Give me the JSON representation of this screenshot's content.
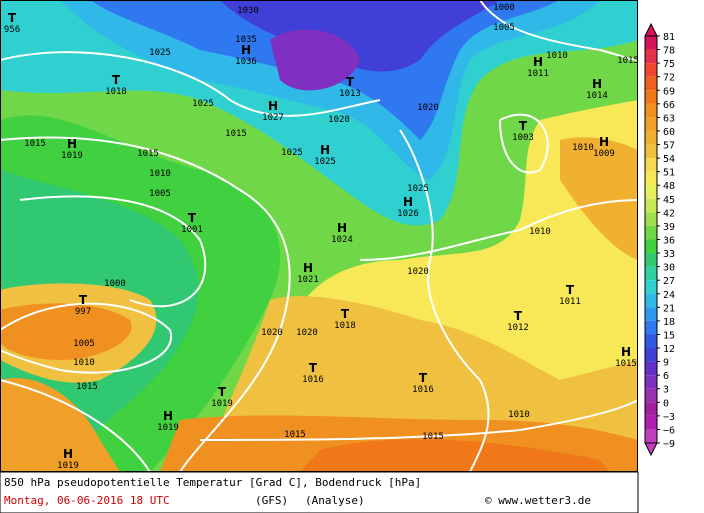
{
  "map": {
    "centers": [
      {
        "symbol": "T",
        "value": "956"
      },
      {
        "symbol": "H",
        "value": "1036"
      },
      {
        "symbol": "T",
        "value": "1018"
      },
      {
        "symbol": "H",
        "value": "1019"
      },
      {
        "symbol": "H",
        "value": "1027"
      },
      {
        "symbol": "T",
        "value": "1013"
      },
      {
        "symbol": "H",
        "value": "1011"
      },
      {
        "symbol": "H",
        "value": "1014"
      },
      {
        "symbol": "T",
        "value": "1003"
      },
      {
        "symbol": "H",
        "value": "1009"
      },
      {
        "symbol": "H",
        "value": "1025"
      },
      {
        "symbol": "T",
        "value": "1001"
      },
      {
        "symbol": "H",
        "value": "1026"
      },
      {
        "symbol": "H",
        "value": "1024"
      },
      {
        "symbol": "H",
        "value": "1021"
      },
      {
        "symbol": "T",
        "value": "997"
      },
      {
        "symbol": "T",
        "value": "1018"
      },
      {
        "symbol": "T",
        "value": "1011"
      },
      {
        "symbol": "T",
        "value": "1012"
      },
      {
        "symbol": "T",
        "value": "1016"
      },
      {
        "symbol": "T",
        "value": "1016"
      },
      {
        "symbol": "T",
        "value": "1019"
      },
      {
        "symbol": "H",
        "value": "1019"
      },
      {
        "symbol": "H",
        "value": "1015"
      },
      {
        "symbol": "H",
        "value": "1019"
      }
    ],
    "isobar_labels": [
      "1030",
      "1035",
      "1025",
      "1025",
      "1020",
      "1020",
      "1015",
      "1010",
      "1005",
      "1025",
      "1025",
      "1010",
      "1020",
      "1000",
      "1005",
      "1010",
      "1015",
      "1020",
      "1020",
      "1015",
      "1015",
      "1010",
      "1005",
      "1000",
      "1010",
      "1015",
      "1010",
      "1015",
      "1015"
    ]
  },
  "legend": {
    "ticks": [
      "81",
      "78",
      "75",
      "72",
      "69",
      "66",
      "63",
      "60",
      "57",
      "54",
      "51",
      "48",
      "45",
      "42",
      "39",
      "36",
      "33",
      "30",
      "27",
      "24",
      "21",
      "18",
      "15",
      "12",
      "9",
      "6",
      "3",
      "0",
      "−3",
      "−6",
      "−9"
    ],
    "colors": [
      "#d4145a",
      "#e8304a",
      "#f04830",
      "#f06020",
      "#f07818",
      "#f09020",
      "#f0a028",
      "#f0b030",
      "#f0c040",
      "#f8d850",
      "#f8e858",
      "#e8f060",
      "#c8e858",
      "#a0e050",
      "#70d848",
      "#40d040",
      "#30c870",
      "#30d0a0",
      "#30d0d0",
      "#30b8e8",
      "#3098f0",
      "#3078f0",
      "#3058e0",
      "#4040d8",
      "#6030c8",
      "#8030c0",
      "#9830b0",
      "#a020a0",
      "#b020b0",
      "#c040c0"
    ]
  },
  "footer": {
    "title": "850 hPa pseudopotentielle Temperatur [Grad C], Bodendruck [hPa]",
    "date": "Montag, 06-06-2016  18 UTC",
    "model": "(GFS)",
    "run": "(Analyse)",
    "credit": "© www.wetter3.de"
  }
}
